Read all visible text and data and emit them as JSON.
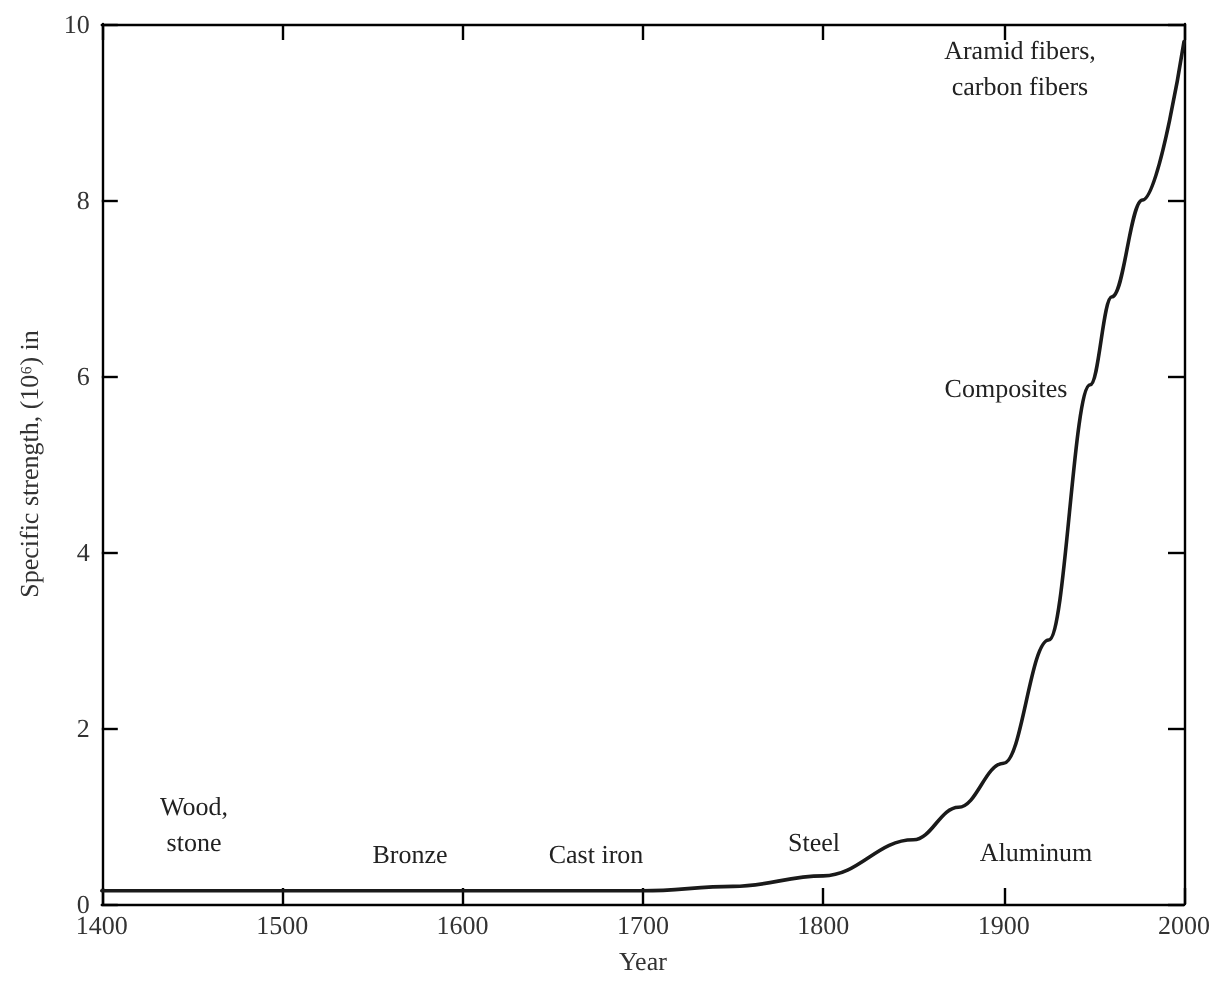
{
  "chart_data": {
    "type": "line",
    "xlabel": "Year",
    "ylabel": "Specific strength, (10⁶) in",
    "x": [
      1400,
      1500,
      1600,
      1700,
      1750,
      1800,
      1850,
      1875,
      1900,
      1925,
      1948,
      1960,
      1977,
      2000
    ],
    "series": [
      {
        "color": "#1a1a1a",
        "values": [
          0.15,
          0.15,
          0.15,
          0.15,
          0.2,
          0.32,
          0.73,
          1.1,
          1.6,
          3.0,
          5.9,
          6.9,
          8.0,
          9.8
        ]
      }
    ],
    "xlim": [
      1400,
      2000
    ],
    "xticks": [
      1400,
      1500,
      1600,
      1700,
      1800,
      1900,
      2000
    ],
    "ylim": [
      0,
      10
    ],
    "yticks": [
      0,
      2,
      4,
      6,
      8,
      10
    ],
    "grid": false,
    "marker": "none",
    "line_style": "solid",
    "annotations": [
      "Wood,\nstone",
      "Bronze",
      "Cast iron",
      "Steel",
      "Aluminum",
      "Composites",
      "Aramid fibers,\ncarbon fibers"
    ]
  }
}
